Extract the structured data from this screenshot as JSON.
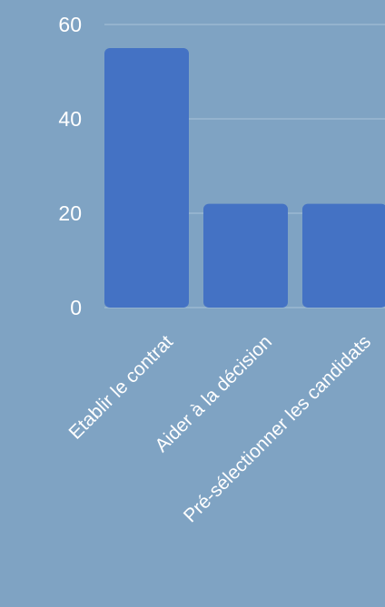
{
  "chart_data": {
    "type": "bar",
    "title": "",
    "xlabel": "",
    "ylabel": "",
    "categories": [
      "Etablir le contrat",
      "Aider à la décision",
      "Pré-sélectionner les candidats"
    ],
    "values": [
      55,
      22,
      22
    ],
    "ylim": [
      0,
      60
    ],
    "yticks": [
      0,
      20,
      40,
      60
    ],
    "grid": true,
    "legend": "none",
    "colors": {
      "background": "#7fa3c3",
      "bar": "#4472c4",
      "grid": "#a9c3da",
      "text": "#ffffff"
    }
  }
}
